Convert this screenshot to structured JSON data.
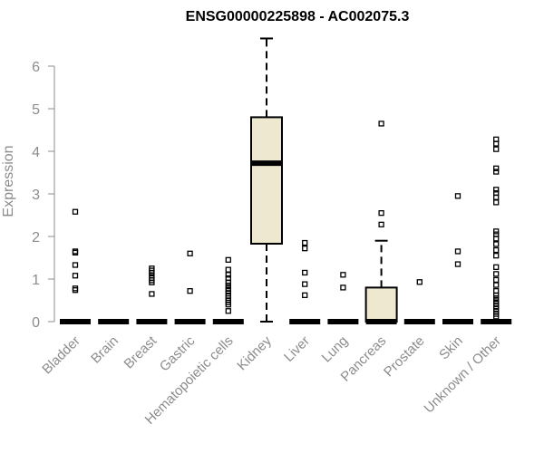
{
  "chart_data": {
    "type": "boxplot",
    "title": "ENSG00000225898 - AC002075.3",
    "xlabel": "",
    "ylabel": "Expression",
    "ylim": [
      0,
      6.5
    ],
    "yticks": [
      0,
      1,
      2,
      3,
      4,
      5,
      6
    ],
    "grid": false,
    "legend": "none",
    "box_fill": "#ede8cf",
    "categories": [
      "Bladder",
      "Brain",
      "Breast",
      "Gastric",
      "Hematopoietic cells",
      "Kidney",
      "Liver",
      "Lung",
      "Pancreas",
      "Prostate",
      "Skin",
      "Unknown / Other"
    ],
    "boxes": [
      {
        "name": "Bladder",
        "min": 0,
        "q1": 0,
        "median": 0,
        "q3": 0,
        "max": 0,
        "outliers": [
          2.58,
          1.65,
          1.62,
          1.33,
          1.08,
          0.78,
          0.74
        ]
      },
      {
        "name": "Brain",
        "min": 0,
        "q1": 0,
        "median": 0,
        "q3": 0,
        "max": 0,
        "outliers": []
      },
      {
        "name": "Breast",
        "min": 0,
        "q1": 0,
        "median": 0,
        "q3": 0,
        "max": 0,
        "outliers": [
          1.25,
          1.2,
          1.15,
          1.08,
          1.02,
          0.97,
          0.92,
          0.65
        ]
      },
      {
        "name": "Gastric",
        "min": 0,
        "q1": 0,
        "median": 0,
        "q3": 0,
        "max": 0,
        "outliers": [
          1.6,
          0.72
        ]
      },
      {
        "name": "Hematopoietic cells",
        "min": 0,
        "q1": 0,
        "median": 0,
        "q3": 0,
        "max": 0,
        "outliers": [
          1.45,
          1.22,
          1.1,
          1.02,
          0.92,
          0.85,
          0.78,
          0.72,
          0.66,
          0.6,
          0.55,
          0.5,
          0.45,
          0.4,
          0.25
        ]
      },
      {
        "name": "Kidney",
        "min": 0,
        "q1": 1.83,
        "median": 3.72,
        "q3": 4.8,
        "max": 6.65,
        "outliers": []
      },
      {
        "name": "Liver",
        "min": 0,
        "q1": 0,
        "median": 0,
        "q3": 0,
        "max": 0,
        "outliers": [
          1.85,
          1.72,
          1.15,
          0.88,
          0.62
        ]
      },
      {
        "name": "Lung",
        "min": 0,
        "q1": 0,
        "median": 0,
        "q3": 0,
        "max": 0,
        "outliers": [
          1.1,
          0.8
        ]
      },
      {
        "name": "Pancreas",
        "min": 0,
        "q1": 0,
        "median": 0,
        "q3": 0.8,
        "max": 1.9,
        "outliers": [
          4.65,
          2.55,
          2.28
        ]
      },
      {
        "name": "Prostate",
        "min": 0,
        "q1": 0,
        "median": 0,
        "q3": 0,
        "max": 0,
        "outliers": [
          0.93
        ]
      },
      {
        "name": "Skin",
        "min": 0,
        "q1": 0,
        "median": 0,
        "q3": 0,
        "max": 0,
        "outliers": [
          2.95,
          1.65,
          1.35
        ]
      },
      {
        "name": "Unknown / Other",
        "min": 0,
        "q1": 0,
        "median": 0,
        "q3": 0,
        "max": 0,
        "outliers": [
          4.28,
          4.18,
          4.05,
          3.6,
          3.52,
          3.1,
          3.02,
          2.92,
          2.8,
          2.12,
          2.05,
          1.95,
          1.82,
          1.68,
          1.55,
          1.28,
          1.12,
          0.98,
          0.86,
          0.72,
          0.62,
          0.55,
          0.48,
          0.42,
          0.36,
          0.3,
          0.24,
          0.18,
          0.12
        ]
      }
    ]
  }
}
